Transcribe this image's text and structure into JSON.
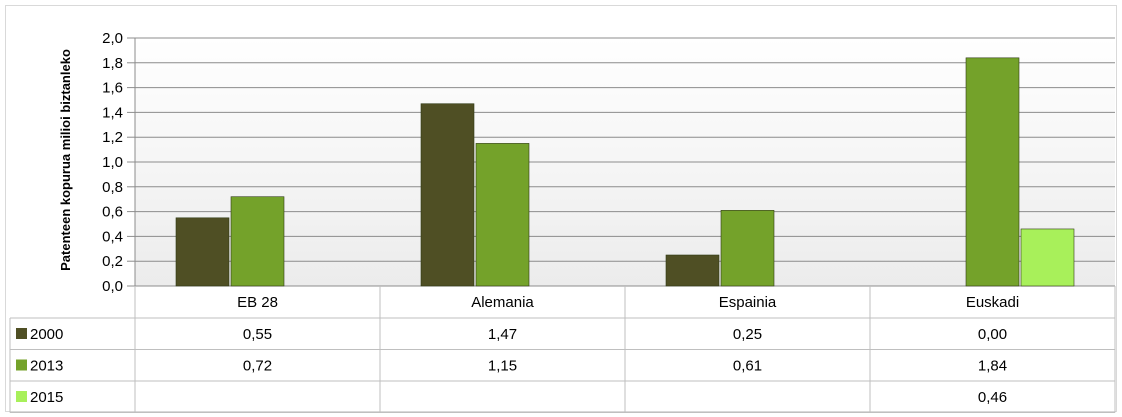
{
  "chart_data": {
    "type": "bar",
    "title": "",
    "xlabel": "",
    "ylabel": "Patenteen kopurua milioi biztanleko",
    "ylim": [
      0,
      2.0
    ],
    "ytick_step": 0.2,
    "y_tick_labels": [
      "0,0",
      "0,2",
      "0,4",
      "0,6",
      "0,8",
      "1,0",
      "1,2",
      "1,4",
      "1,6",
      "1,8",
      "2,0"
    ],
    "categories": [
      "EB 28",
      "Alemania",
      "Espainia",
      "Euskadi"
    ],
    "series": [
      {
        "name": "2000",
        "color": "#4f4f24",
        "values": [
          0.55,
          1.47,
          0.25,
          0.0
        ],
        "table_values": [
          "0,55",
          "1,47",
          "0,25",
          "0,00"
        ]
      },
      {
        "name": "2013",
        "color": "#74a22a",
        "values": [
          0.72,
          1.15,
          0.61,
          1.84
        ],
        "table_values": [
          "0,72",
          "1,15",
          "0,61",
          "1,84"
        ]
      },
      {
        "name": "2015",
        "color": "#a8f05a",
        "values": [
          null,
          null,
          null,
          0.46
        ],
        "table_values": [
          "",
          "",
          "",
          "0,46"
        ]
      }
    ],
    "grid": true,
    "legend": "data-table"
  }
}
